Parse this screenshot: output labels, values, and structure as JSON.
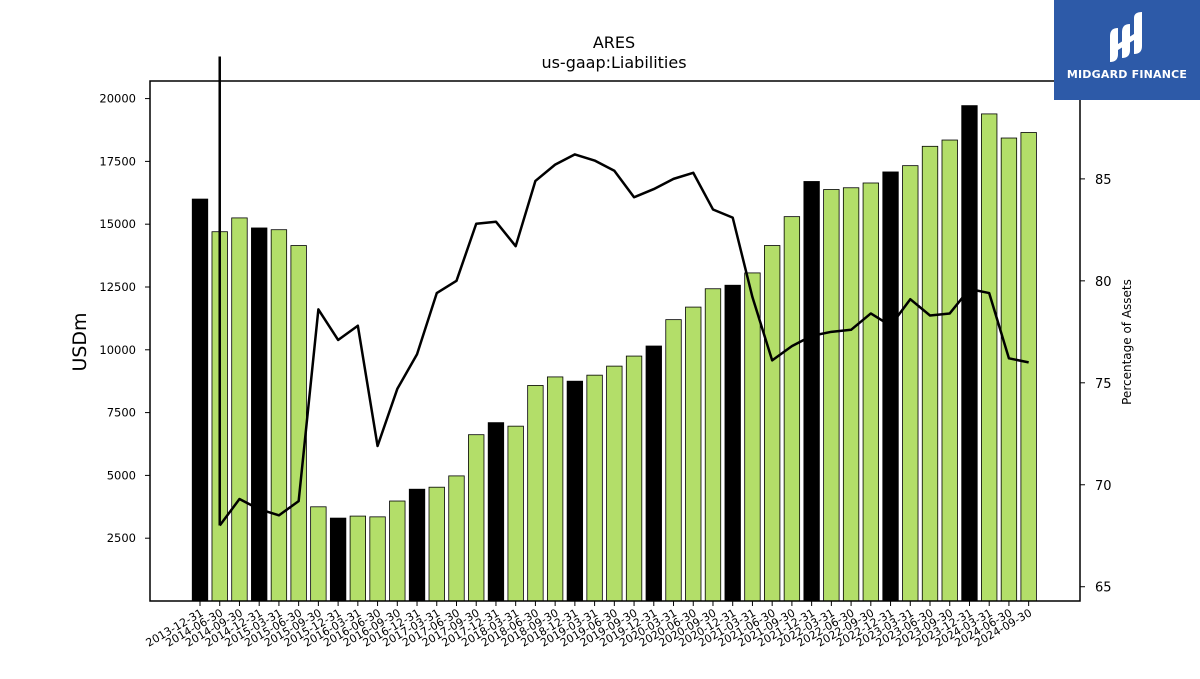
{
  "brand": {
    "name": "MIDGARD FINANCE",
    "bg": "#2d5aa8"
  },
  "chart_data": {
    "type": "bar",
    "title": "ARES",
    "subtitle": "us-gaap:Liabilities",
    "ylabel": "USDm",
    "y2label": "Percentage of Assets",
    "ylim": [
      0,
      20700
    ],
    "y2lim": [
      64.3,
      89.8
    ],
    "yticks": [
      2500,
      5000,
      7500,
      10000,
      12500,
      15000,
      17500,
      20000
    ],
    "y2ticks": [
      65,
      70,
      75,
      80,
      85
    ],
    "colors": {
      "annual_bar": "#000000",
      "quarter_bar": "#b3de69",
      "line": "#000000"
    },
    "categories": [
      "2013-12-31",
      "2014-06-30",
      "2014-09-30",
      "2014-12-31",
      "2015-03-31",
      "2015-06-30",
      "2015-09-30",
      "2015-12-31",
      "2016-03-31",
      "2016-06-30",
      "2016-09-30",
      "2016-12-31",
      "2017-03-31",
      "2017-06-30",
      "2017-09-30",
      "2017-12-31",
      "2018-03-31",
      "2018-06-30",
      "2018-09-30",
      "2018-12-31",
      "2019-03-31",
      "2019-06-30",
      "2019-09-30",
      "2019-12-31",
      "2020-03-31",
      "2020-06-30",
      "2020-09-30",
      "2020-12-31",
      "2021-03-31",
      "2021-06-30",
      "2021-09-30",
      "2021-12-31",
      "2022-03-31",
      "2022-06-30",
      "2022-09-30",
      "2022-12-31",
      "2023-03-31",
      "2023-06-30",
      "2023-09-30",
      "2023-12-31",
      "2024-03-31",
      "2024-06-30",
      "2024-09-30"
    ],
    "series": [
      {
        "type": "bar",
        "values": [
          16000,
          14700,
          15250,
          14850,
          14780,
          14150,
          3750,
          3300,
          3380,
          3350,
          3980,
          4450,
          4530,
          4980,
          6620,
          7100,
          6960,
          8580,
          8920,
          8750,
          8990,
          9350,
          9750,
          10150,
          11200,
          11700,
          12430,
          12570,
          13060,
          14150,
          15300,
          16700,
          16380,
          16450,
          16640,
          17080,
          17330,
          18100,
          18350,
          19720,
          19390,
          18430,
          18650
        ],
        "annual": [
          true,
          false,
          false,
          true,
          false,
          false,
          false,
          true,
          false,
          false,
          false,
          true,
          false,
          false,
          false,
          true,
          false,
          false,
          false,
          true,
          false,
          false,
          false,
          true,
          false,
          false,
          false,
          true,
          false,
          false,
          false,
          true,
          false,
          false,
          false,
          true,
          false,
          false,
          false,
          true,
          false,
          false,
          false
        ]
      },
      {
        "type": "line",
        "axis": "right",
        "values": [
          null,
          68.0,
          69.3,
          68.8,
          68.5,
          69.2,
          78.6,
          77.1,
          77.8,
          71.9,
          74.7,
          76.4,
          79.4,
          80.0,
          82.8,
          82.9,
          81.7,
          84.9,
          85.7,
          86.2,
          85.9,
          85.4,
          84.1,
          84.5,
          85.0,
          85.3,
          83.5,
          83.1,
          79.2,
          76.1,
          76.8,
          77.3,
          77.5,
          77.6,
          78.4,
          77.8,
          79.1,
          78.3,
          78.4,
          79.6,
          79.4,
          76.2,
          76.0
        ],
        "spike_from": 91.0
      }
    ]
  }
}
